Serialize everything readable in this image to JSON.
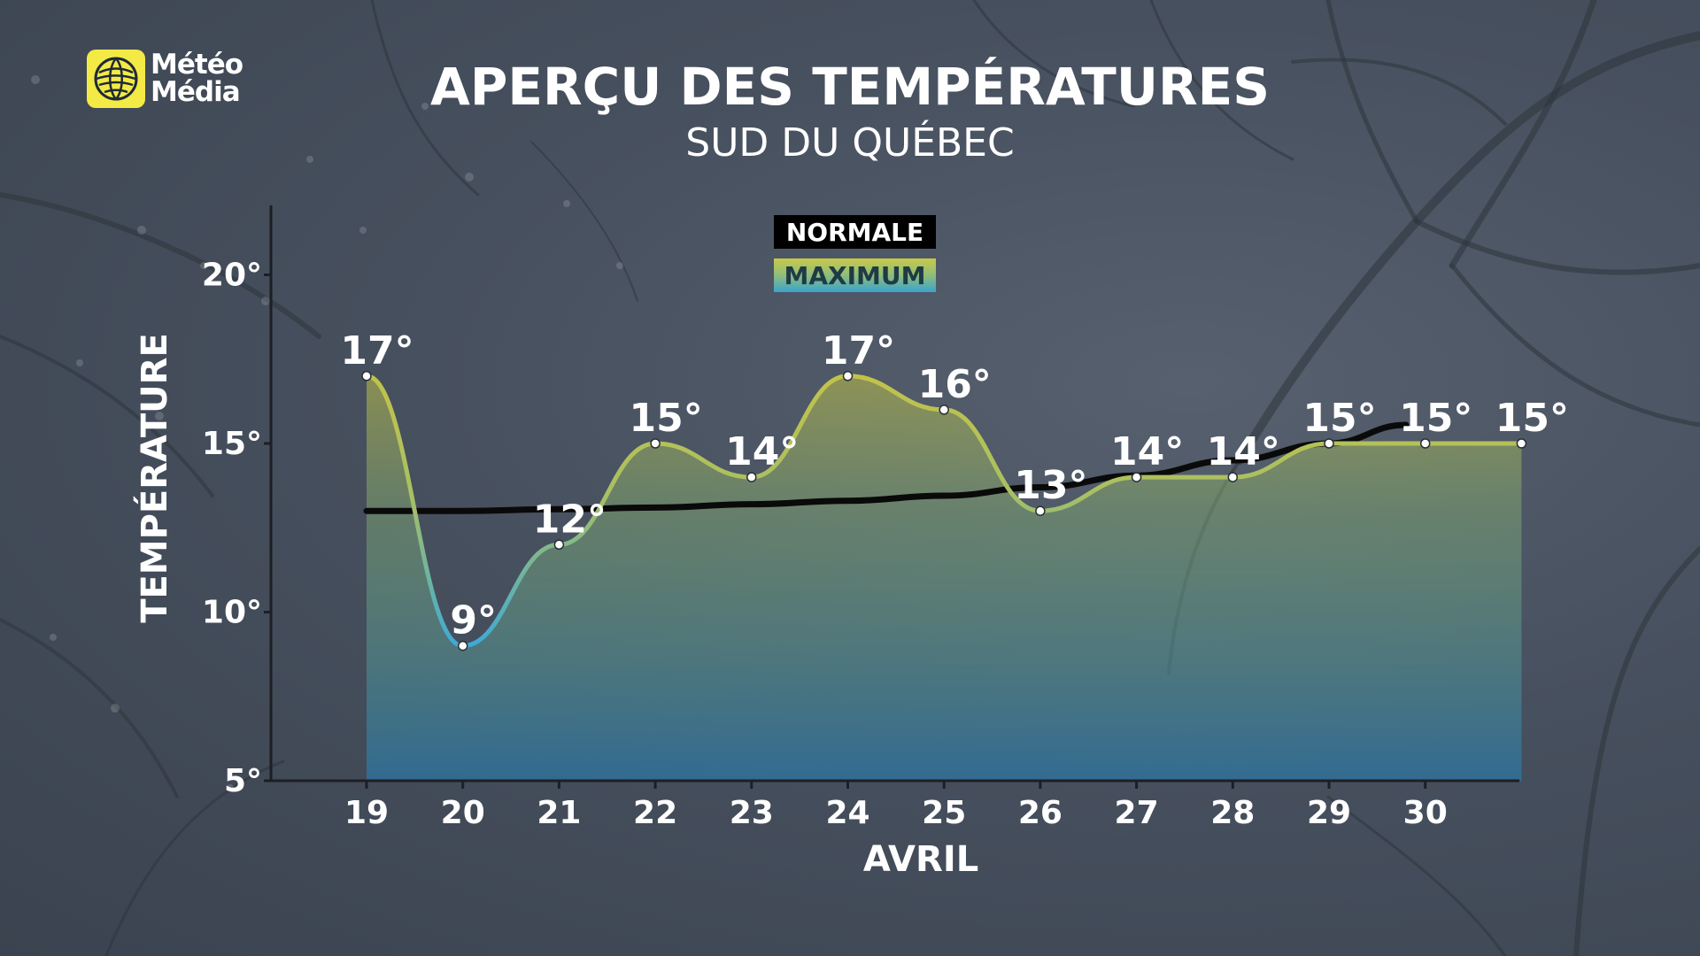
{
  "brand": {
    "line1": "Météo",
    "line2": "Média",
    "logo_color": "#f3ea45"
  },
  "header": {
    "title": "APERÇU DES TEMPÉRATURES",
    "subtitle": "SUD DU QUÉBEC"
  },
  "legend": {
    "normal_label": "NORMALE",
    "max_label": "MAXIMUM"
  },
  "chart_data": {
    "type": "line",
    "title": "APERÇU DES TEMPÉRATURES",
    "subtitle": "SUD DU QUÉBEC",
    "xlabel": "AVRIL",
    "ylabel": "TEMPÉRATURE",
    "x": [
      19,
      20,
      21,
      22,
      23,
      24,
      25,
      26,
      27,
      28,
      29,
      30,
      31
    ],
    "x_tick_labels": [
      "19",
      "20",
      "21",
      "22",
      "23",
      "24",
      "25",
      "26",
      "27",
      "28",
      "29",
      "30"
    ],
    "y_ticks": [
      5,
      10,
      15,
      20
    ],
    "y_tick_labels": [
      "5°",
      "10°",
      "15°",
      "20°"
    ],
    "ylim": [
      5,
      22
    ],
    "series": [
      {
        "name": "MAXIMUM",
        "values": [
          17,
          9,
          12,
          15,
          14,
          17,
          16,
          13,
          14,
          14,
          15,
          15,
          15
        ],
        "labels": [
          "17°",
          "9°",
          "12°",
          "15°",
          "14°",
          "17°",
          "16°",
          "13°",
          "14°",
          "14°",
          "15°",
          "15°",
          "15°"
        ],
        "colors": [
          "#c2c24a",
          "#3eaad6"
        ]
      },
      {
        "name": "NORMALE",
        "x": [
          19,
          20,
          21,
          22,
          23,
          24,
          25,
          26,
          27,
          28,
          29,
          29.8
        ],
        "values": [
          13.0,
          13.0,
          13.05,
          13.1,
          13.2,
          13.3,
          13.45,
          13.7,
          14.05,
          14.5,
          15.0,
          15.55
        ],
        "color": "#0a0a0a"
      }
    ],
    "grid": false,
    "legend_position": "top-center"
  }
}
